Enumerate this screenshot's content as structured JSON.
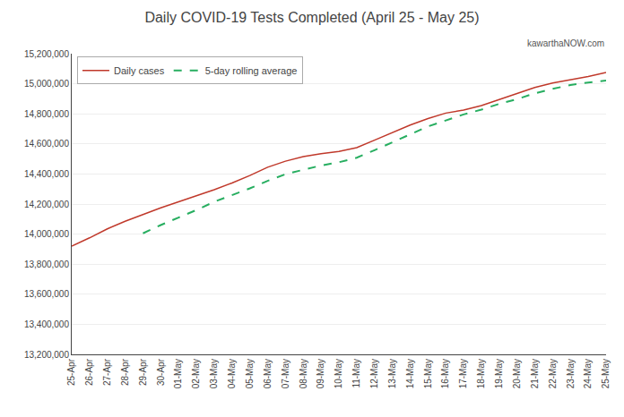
{
  "chart_data": {
    "type": "line",
    "title": "Daily COVID-19 Tests Completed (April 25 - May 25)",
    "categories": [
      "25-Apr",
      "26-Apr",
      "27-Apr",
      "28-Apr",
      "29-Apr",
      "30-Apr",
      "01-May",
      "02-May",
      "03-May",
      "04-May",
      "05-May",
      "06-May",
      "07-May",
      "08-May",
      "09-May",
      "10-May",
      "11-May",
      "12-May",
      "13-May",
      "14-May",
      "15-May",
      "16-May",
      "17-May",
      "18-May",
      "19-May",
      "20-May",
      "21-May",
      "22-May",
      "23-May",
      "24-May",
      "25-May"
    ],
    "series": [
      {
        "name": "Daily cases",
        "color": "#c0392b",
        "line_style": "solid",
        "values": [
          13920000,
          13975000,
          14035000,
          14085000,
          14130000,
          14175000,
          14215000,
          14255000,
          14295000,
          14340000,
          14390000,
          14445000,
          14485000,
          14515000,
          14535000,
          14550000,
          14575000,
          14625000,
          14675000,
          14725000,
          14768000,
          14805000,
          14825000,
          14855000,
          14895000,
          14935000,
          14975000,
          15005000,
          15025000,
          15048000,
          15075000
        ]
      },
      {
        "name": "5-day rolling average",
        "color": "#27ae60",
        "line_style": "dashed",
        "values": [
          null,
          null,
          null,
          null,
          14005000,
          14060000,
          14110000,
          14160000,
          14215000,
          14260000,
          14304000,
          14354000,
          14398000,
          14428000,
          14456000,
          14478000,
          14508000,
          14558000,
          14612000,
          14664000,
          14716000,
          14756000,
          14796000,
          14828000,
          14866000,
          14898000,
          14936000,
          14966000,
          14992000,
          15008000,
          15022000
        ]
      }
    ],
    "ylim": [
      13200000,
      15200000
    ],
    "yticks": [
      {
        "value": 13200000,
        "label": "13,200,000"
      },
      {
        "value": 13400000,
        "label": "13,400,000"
      },
      {
        "value": 13600000,
        "label": "13,600,000"
      },
      {
        "value": 13800000,
        "label": "13,800,000"
      },
      {
        "value": 14000000,
        "label": "14,000,000"
      },
      {
        "value": 14200000,
        "label": "14,200,000"
      },
      {
        "value": 14400000,
        "label": "14,400,000"
      },
      {
        "value": 14600000,
        "label": "14,600,000"
      },
      {
        "value": 14800000,
        "label": "14,800,000"
      },
      {
        "value": 15000000,
        "label": "15,000,000"
      },
      {
        "value": 15200000,
        "label": "15,200,000"
      }
    ],
    "grid": true,
    "legend": "upper left",
    "annotations": [
      "kawarthaNOW.com"
    ]
  }
}
